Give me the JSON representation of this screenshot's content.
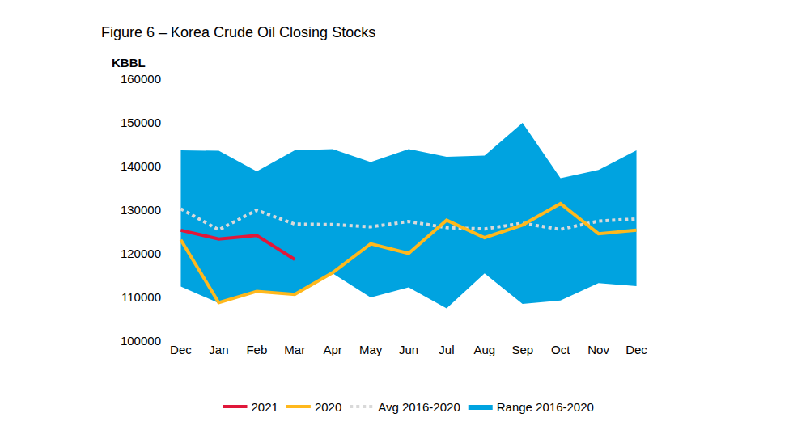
{
  "chart_data": {
    "type": "line",
    "title": "Figure 6 – Korea Crude Oil Closing Stocks",
    "y_label": "KBBL",
    "categories": [
      "Dec",
      "Jan",
      "Feb",
      "Mar",
      "Apr",
      "May",
      "Jun",
      "Jul",
      "Aug",
      "Sep",
      "Oct",
      "Nov",
      "Dec"
    ],
    "series": [
      {
        "name": "Range 2016-2020",
        "type": "range",
        "color": "#00a3e0",
        "low": [
          112500,
          108700,
          111400,
          110800,
          115500,
          110000,
          112300,
          107500,
          115500,
          108500,
          109300,
          113300,
          112600
        ],
        "high": [
          143700,
          143600,
          138900,
          143700,
          144000,
          141000,
          144000,
          142200,
          142500,
          150000,
          137300,
          139200,
          143700
        ]
      },
      {
        "name": "Avg 2016-2020",
        "type": "line",
        "color": "#d9d9d9",
        "line_style": "dotted",
        "values": [
          130300,
          125500,
          130000,
          126800,
          126700,
          126200,
          127400,
          126000,
          125700,
          127000,
          125600,
          127500,
          128000
        ]
      },
      {
        "name": "2020",
        "type": "line",
        "color": "#ffb81c",
        "line_style": "solid",
        "values": [
          123200,
          108800,
          111400,
          110700,
          115700,
          122300,
          120100,
          127700,
          123700,
          126600,
          131500,
          124600,
          125400
        ]
      },
      {
        "name": "2021",
        "type": "line",
        "color": "#e0173a",
        "line_style": "solid",
        "values": [
          125400,
          123400,
          124200,
          118700,
          null,
          null,
          null,
          null,
          null,
          null,
          null,
          null,
          null
        ]
      }
    ],
    "ylim": [
      100000,
      160000
    ],
    "yticks": [
      100000,
      110000,
      120000,
      130000,
      140000,
      150000,
      160000
    ],
    "grid": false,
    "legend": "bottom"
  }
}
